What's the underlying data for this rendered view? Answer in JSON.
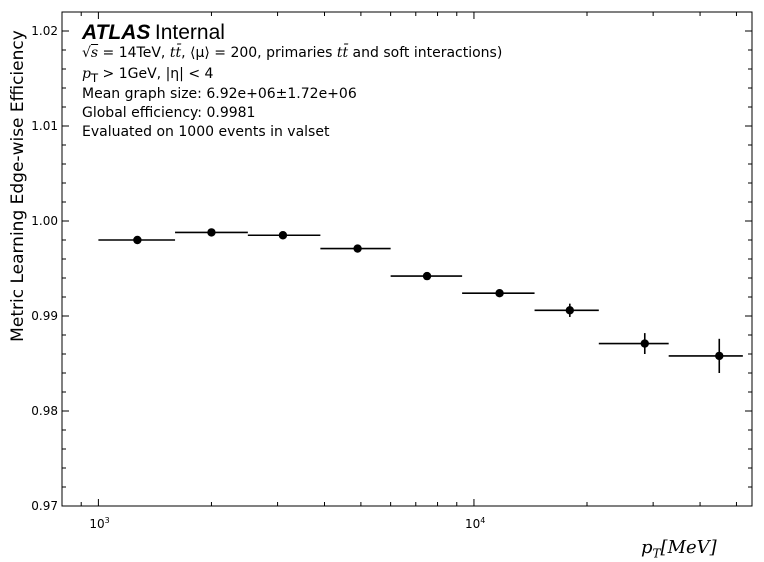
{
  "chart_data": {
    "type": "scatter",
    "xscale": "log",
    "xlim": [
      800,
      55000
    ],
    "ylim": [
      0.97,
      1.022
    ],
    "ylabel": "Metric Learning Edge-wise Efficiency",
    "xlabel_var": "p",
    "xlabel_sub": "T",
    "xlabel_unit": "[MeV]",
    "y_ticks": [
      "0.97",
      "0.98",
      "0.99",
      "1.00",
      "1.01",
      "1.02"
    ],
    "x_ticks": [
      {
        "base": "10",
        "exp": "3"
      },
      {
        "base": "10",
        "exp": "4"
      }
    ],
    "points": [
      {
        "x": 1270,
        "xlo": 1000,
        "xhi": 1600,
        "y": 0.998,
        "yerr": 0.0002
      },
      {
        "x": 2000,
        "xlo": 1600,
        "xhi": 2500,
        "y": 0.9988,
        "yerr": 0.0002
      },
      {
        "x": 3100,
        "xlo": 2500,
        "xhi": 3900,
        "y": 0.9985,
        "yerr": 0.0002
      },
      {
        "x": 4900,
        "xlo": 3900,
        "xhi": 6000,
        "y": 0.9971,
        "yerr": 0.0002
      },
      {
        "x": 7500,
        "xlo": 6000,
        "xhi": 9300,
        "y": 0.9942,
        "yerr": 0.0002
      },
      {
        "x": 11700,
        "xlo": 9300,
        "xhi": 14500,
        "y": 0.9924,
        "yerr": 0.0003
      },
      {
        "x": 18000,
        "xlo": 14500,
        "xhi": 21500,
        "y": 0.9906,
        "yerr": 0.0007
      },
      {
        "x": 28500,
        "xlo": 21500,
        "xhi": 33000,
        "y": 0.9871,
        "yerr": 0.0011
      },
      {
        "x": 45000,
        "xlo": 33000,
        "xhi": 52000,
        "y": 0.9858,
        "yerr": 0.0018
      }
    ],
    "marker_color": "#000000",
    "grid": false
  },
  "annotations": {
    "atlas": "ATLAS",
    "internal": "Internal",
    "sqrt_s": "s",
    "energy": " = 14TeV, ",
    "process1": "tt̄",
    "pileup": ", ⟨μ⟩ = 200, primaries ",
    "process2": "tt̄",
    "soft": " and soft interactions)",
    "cut_var": "p",
    "cut_sub": "T",
    "cut_text": " > 1GeV, |η| < 4",
    "graph_size": "Mean graph size: 6.92e+06±1.72e+06",
    "global_eff": "Global efficiency: 0.9981",
    "evaluated": "Evaluated on 1000 events in valset"
  }
}
